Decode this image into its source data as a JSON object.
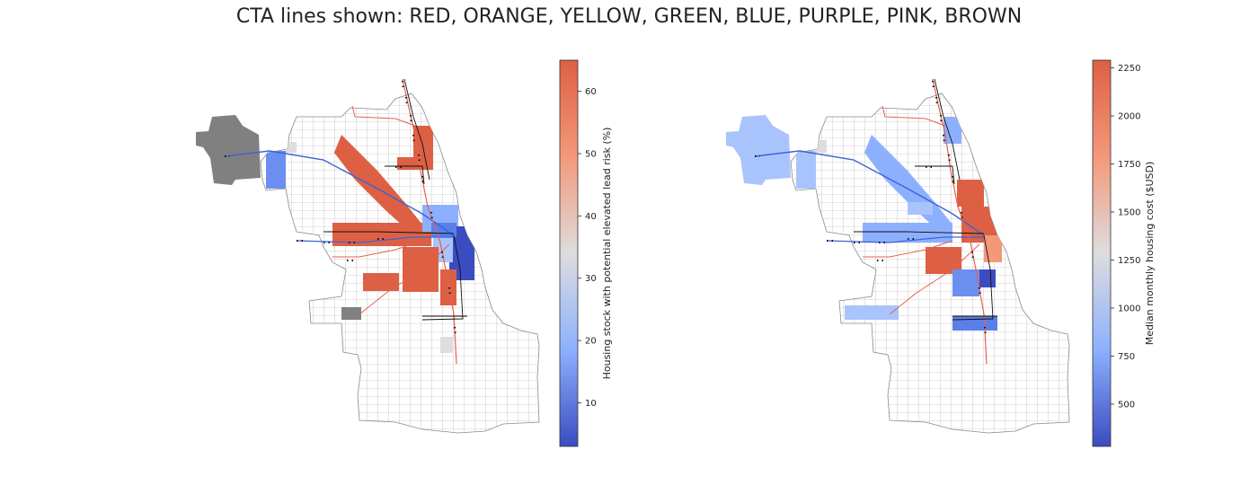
{
  "title": "CTA lines shown: RED, ORANGE, YELLOW, GREEN, BLUE, PURPLE, PINK, BROWN",
  "colors": {
    "cmap_low": "#3b4cc0",
    "cmap_mid": "#dddddd",
    "cmap_high": "#dd6044",
    "tract_outline": "#9a9a9a",
    "missing_data": "#808080",
    "transit_line_red": "#e8604a",
    "transit_line_blue": "#3a63d8",
    "station": "#111111"
  },
  "maps": [
    {
      "name": "lead-risk-map",
      "colorbar": {
        "label": "Housing stock with potential elevated lead risk (%)",
        "min": 3,
        "max": 65,
        "ticks": [
          10,
          20,
          30,
          40,
          50,
          60
        ]
      }
    },
    {
      "name": "housing-cost-map",
      "colorbar": {
        "label": "Median monthly housing cost ($USD)",
        "min": 280,
        "max": 2290,
        "ticks": [
          500,
          750,
          1000,
          1250,
          1500,
          1750,
          2000,
          2250
        ]
      }
    }
  ]
}
